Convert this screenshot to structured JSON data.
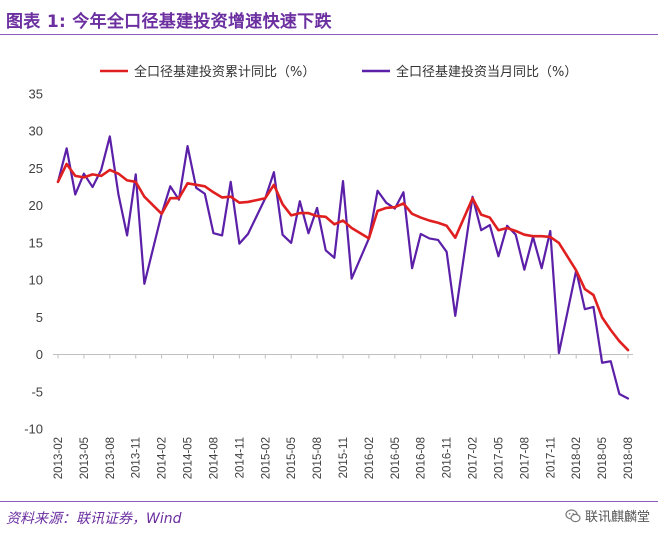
{
  "title": "图表 1:  今年全口径基建投资增速快速下跌",
  "source": "资料来源：联讯证券，Wind",
  "watermark": "联讯麒麟堂",
  "watermark_icon": "wechat-icon",
  "colors": {
    "title": "#6b2fa0",
    "series_cumulative": "#e02020",
    "series_monthly": "#5b1fa8",
    "axis": "#bfbfbf",
    "tick_text": "#404040"
  },
  "chart_data": {
    "type": "line",
    "ylim": [
      -10,
      35
    ],
    "yticks": [
      -10,
      -5,
      0,
      5,
      10,
      15,
      20,
      25,
      30,
      35
    ],
    "grid": false,
    "legend_position": "top",
    "xlabels": [
      "2013-02",
      "2013-05",
      "2013-08",
      "2013-11",
      "2014-02",
      "2014-05",
      "2014-08",
      "2014-11",
      "2015-02",
      "2015-05",
      "2015-08",
      "2015-11",
      "2016-02",
      "2016-05",
      "2016-08",
      "2016-11",
      "2017-02",
      "2017-05",
      "2017-08",
      "2017-11",
      "2018-02",
      "2018-05",
      "2018-08"
    ],
    "series": [
      {
        "name": "全口径基建投资累计同比（%）",
        "color": "#e02020",
        "points": [
          [
            "2013-02",
            23.2
          ],
          [
            "2013-03",
            25.6
          ],
          [
            "2013-04",
            24.0
          ],
          [
            "2013-05",
            23.8
          ],
          [
            "2013-06",
            24.2
          ],
          [
            "2013-07",
            24.0
          ],
          [
            "2013-08",
            24.8
          ],
          [
            "2013-09",
            24.3
          ],
          [
            "2013-10",
            23.4
          ],
          [
            "2013-11",
            23.2
          ],
          [
            "2013-12",
            21.2
          ],
          [
            "2014-02",
            18.9
          ],
          [
            "2014-03",
            21.0
          ],
          [
            "2014-04",
            21.0
          ],
          [
            "2014-05",
            23.0
          ],
          [
            "2014-06",
            22.8
          ],
          [
            "2014-07",
            22.6
          ],
          [
            "2014-08",
            21.8
          ],
          [
            "2014-09",
            21.1
          ],
          [
            "2014-10",
            21.2
          ],
          [
            "2014-11",
            20.4
          ],
          [
            "2014-12",
            20.5
          ],
          [
            "2015-02",
            21.0
          ],
          [
            "2015-03",
            22.8
          ],
          [
            "2015-04",
            20.2
          ],
          [
            "2015-05",
            18.7
          ],
          [
            "2015-06",
            19.0
          ],
          [
            "2015-07",
            19.0
          ],
          [
            "2015-08",
            18.6
          ],
          [
            "2015-09",
            18.5
          ],
          [
            "2015-10",
            17.5
          ],
          [
            "2015-11",
            18.0
          ],
          [
            "2015-12",
            17.0
          ],
          [
            "2016-02",
            15.6
          ],
          [
            "2016-03",
            19.3
          ],
          [
            "2016-04",
            19.7
          ],
          [
            "2016-05",
            19.8
          ],
          [
            "2016-06",
            20.3
          ],
          [
            "2016-07",
            18.9
          ],
          [
            "2016-08",
            18.4
          ],
          [
            "2016-09",
            18.0
          ],
          [
            "2016-10",
            17.7
          ],
          [
            "2016-11",
            17.3
          ],
          [
            "2016-12",
            15.7
          ],
          [
            "2017-02",
            21.0
          ],
          [
            "2017-03",
            18.8
          ],
          [
            "2017-04",
            18.4
          ],
          [
            "2017-05",
            16.7
          ],
          [
            "2017-06",
            17.0
          ],
          [
            "2017-07",
            16.6
          ],
          [
            "2017-08",
            16.1
          ],
          [
            "2017-09",
            15.9
          ],
          [
            "2017-10",
            15.9
          ],
          [
            "2017-11",
            15.8
          ],
          [
            "2017-12",
            15.0
          ],
          [
            "2018-02",
            11.3
          ],
          [
            "2018-03",
            8.8
          ],
          [
            "2018-04",
            8.0
          ],
          [
            "2018-05",
            5.0
          ],
          [
            "2018-06",
            3.3
          ],
          [
            "2018-07",
            1.8
          ],
          [
            "2018-08",
            0.6
          ]
        ]
      },
      {
        "name": "全口径基建投资当月同比（%）",
        "color": "#5b1fa8",
        "points": [
          [
            "2013-02",
            23.2
          ],
          [
            "2013-03",
            27.7
          ],
          [
            "2013-04",
            21.5
          ],
          [
            "2013-05",
            24.3
          ],
          [
            "2013-06",
            22.5
          ],
          [
            "2013-07",
            24.8
          ],
          [
            "2013-08",
            29.3
          ],
          [
            "2013-09",
            21.5
          ],
          [
            "2013-10",
            16.0
          ],
          [
            "2013-11",
            24.2
          ],
          [
            "2013-12",
            9.5
          ],
          [
            "2014-02",
            18.9
          ],
          [
            "2014-03",
            22.6
          ],
          [
            "2014-04",
            20.8
          ],
          [
            "2014-05",
            28.0
          ],
          [
            "2014-06",
            22.4
          ],
          [
            "2014-07",
            21.6
          ],
          [
            "2014-08",
            16.3
          ],
          [
            "2014-09",
            16.0
          ],
          [
            "2014-10",
            23.2
          ],
          [
            "2014-11",
            14.9
          ],
          [
            "2014-12",
            16.2
          ],
          [
            "2015-02",
            21.0
          ],
          [
            "2015-03",
            24.5
          ],
          [
            "2015-04",
            16.1
          ],
          [
            "2015-05",
            15.0
          ],
          [
            "2015-06",
            20.6
          ],
          [
            "2015-07",
            16.3
          ],
          [
            "2015-08",
            19.7
          ],
          [
            "2015-09",
            14.0
          ],
          [
            "2015-10",
            13.0
          ],
          [
            "2015-11",
            23.3
          ],
          [
            "2015-12",
            10.2
          ],
          [
            "2016-02",
            15.6
          ],
          [
            "2016-03",
            22.0
          ],
          [
            "2016-04",
            20.4
          ],
          [
            "2016-05",
            19.6
          ],
          [
            "2016-06",
            21.8
          ],
          [
            "2016-07",
            11.6
          ],
          [
            "2016-08",
            16.2
          ],
          [
            "2016-09",
            15.6
          ],
          [
            "2016-10",
            15.4
          ],
          [
            "2016-11",
            13.8
          ],
          [
            "2016-12",
            5.2
          ],
          [
            "2017-02",
            21.2
          ],
          [
            "2017-03",
            16.7
          ],
          [
            "2017-04",
            17.4
          ],
          [
            "2017-05",
            13.2
          ],
          [
            "2017-06",
            17.3
          ],
          [
            "2017-07",
            16.1
          ],
          [
            "2017-08",
            11.4
          ],
          [
            "2017-09",
            15.8
          ],
          [
            "2017-10",
            11.6
          ],
          [
            "2017-11",
            16.6
          ],
          [
            "2017-12",
            0.2
          ],
          [
            "2018-02",
            11.3
          ],
          [
            "2018-03",
            6.1
          ],
          [
            "2018-04",
            6.4
          ],
          [
            "2018-05",
            -1.1
          ],
          [
            "2018-06",
            -0.9
          ],
          [
            "2018-07",
            -5.3
          ],
          [
            "2018-08",
            -5.9
          ]
        ]
      }
    ]
  }
}
